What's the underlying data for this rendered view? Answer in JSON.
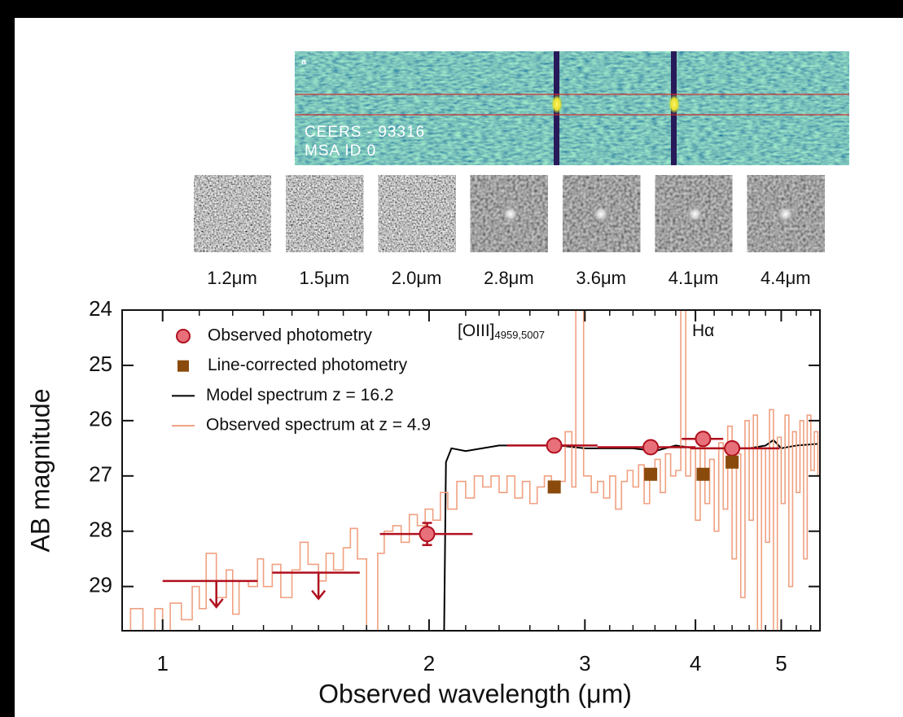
{
  "spectrum_2d": {
    "panel_label": "a",
    "object": "CEERS - 93316",
    "slit": "MSA ID 0"
  },
  "thumbnails": {
    "labels": [
      "1.2μm",
      "1.5μm",
      "2.0μm",
      "2.8μm",
      "3.6μm",
      "4.1μm",
      "4.4μm"
    ]
  },
  "chart_data": {
    "type": "line",
    "xlabel": "Observed wavelength (μm)",
    "ylabel": "AB magnitude",
    "xscale": "log",
    "xlim": [
      0.9,
      5.53
    ],
    "ylim": [
      24,
      29.8
    ],
    "xticks": [
      1,
      2,
      3,
      4,
      5
    ],
    "xminorticks": [
      0.9,
      1.1,
      1.2,
      1.3,
      1.4,
      1.5,
      1.6,
      1.7,
      1.8,
      1.9,
      2.2,
      2.4,
      2.6,
      2.8,
      3.2,
      3.4,
      3.6,
      3.8,
      4.2,
      4.4,
      4.6,
      4.8,
      5.2,
      5.4
    ],
    "yticks": [
      24,
      25,
      26,
      27,
      28,
      29
    ],
    "y_inverted": true,
    "legend": "upper left",
    "annotations": [
      {
        "text": "[OIII]",
        "sub": "4959,5007"
      },
      {
        "text": "Hα"
      }
    ],
    "series": [
      {
        "name": "Observed photometry",
        "type": "scatter",
        "marker": "circle",
        "color": "#e8707a",
        "edge_color": "#b0101e",
        "x": [
          1.15,
          1.5,
          1.99,
          2.77,
          3.56,
          4.08,
          4.4
        ],
        "values": [
          28.9,
          28.75,
          28.05,
          26.45,
          26.48,
          26.33,
          26.5
        ],
        "x_low": [
          1.0,
          1.33,
          1.76,
          2.45,
          3.1,
          3.86,
          3.95
        ],
        "x_high": [
          1.28,
          1.67,
          2.24,
          3.1,
          4.0,
          4.3,
          4.98
        ],
        "yerr": [
          null,
          null,
          0.2,
          null,
          null,
          null,
          null
        ],
        "upper_limit": [
          true,
          true,
          false,
          false,
          false,
          false,
          false
        ]
      },
      {
        "name": "Line-corrected photometry",
        "type": "scatter",
        "marker": "square",
        "color": "#8a4a0c",
        "x": [
          2.77,
          3.56,
          4.08,
          4.4
        ],
        "values": [
          27.2,
          26.97,
          26.97,
          26.75
        ]
      },
      {
        "name": "Model spectrum z = 16.2",
        "type": "line",
        "color": "#000000",
        "x": [
          2.08,
          2.09,
          2.12,
          2.2,
          2.4,
          2.6,
          2.8,
          3.0,
          3.2,
          3.4,
          3.6,
          3.8,
          4.0,
          4.2,
          4.4,
          4.6,
          4.8,
          4.9,
          5.0,
          5.2,
          5.5
        ],
        "values": [
          29.8,
          26.75,
          26.5,
          26.55,
          26.45,
          26.45,
          26.45,
          26.5,
          26.5,
          26.5,
          26.55,
          26.45,
          26.5,
          26.5,
          26.5,
          26.5,
          26.45,
          26.35,
          26.5,
          26.45,
          26.42
        ]
      },
      {
        "name": "Observed spectrum at z = 4.9",
        "type": "step",
        "color": "#f0a080",
        "x": [
          0.9,
          0.92,
          0.95,
          0.98,
          1.0,
          1.02,
          1.05,
          1.08,
          1.1,
          1.12,
          1.15,
          1.18,
          1.2,
          1.22,
          1.25,
          1.28,
          1.3,
          1.33,
          1.36,
          1.4,
          1.43,
          1.46,
          1.5,
          1.53,
          1.56,
          1.6,
          1.63,
          1.66,
          1.7,
          1.72,
          1.75,
          1.78,
          1.82,
          1.86,
          1.9,
          1.94,
          1.98,
          2.02,
          2.06,
          2.1,
          2.15,
          2.2,
          2.25,
          2.3,
          2.35,
          2.4,
          2.45,
          2.5,
          2.55,
          2.6,
          2.65,
          2.7,
          2.75,
          2.8,
          2.85,
          2.9,
          2.93,
          2.96,
          2.99,
          3.05,
          3.1,
          3.15,
          3.2,
          3.25,
          3.3,
          3.35,
          3.4,
          3.45,
          3.5,
          3.55,
          3.6,
          3.65,
          3.7,
          3.75,
          3.8,
          3.85,
          3.9,
          3.95,
          4.0,
          4.05,
          4.1,
          4.15,
          4.2,
          4.25,
          4.3,
          4.35,
          4.4,
          4.45,
          4.5,
          4.55,
          4.6,
          4.65,
          4.7,
          4.75,
          4.8,
          4.85,
          4.9,
          4.95,
          5.0,
          5.05,
          5.1,
          5.15,
          5.2,
          5.25,
          5.3,
          5.35,
          5.4,
          5.45,
          5.5
        ],
        "values": [
          29.8,
          29.4,
          29.8,
          29.4,
          29.8,
          29.3,
          29.6,
          29.0,
          29.4,
          28.4,
          29.2,
          28.7,
          29.5,
          28.9,
          29.0,
          28.5,
          29.0,
          28.6,
          29.2,
          28.7,
          28.2,
          28.6,
          28.9,
          28.4,
          28.7,
          28.3,
          27.95,
          28.5,
          29.8,
          29.8,
          28.4,
          28.0,
          27.9,
          28.2,
          27.7,
          27.9,
          27.6,
          27.8,
          27.3,
          27.6,
          27.1,
          27.4,
          27.0,
          27.2,
          27.0,
          27.3,
          27.0,
          27.4,
          27.1,
          27.5,
          27.2,
          27.0,
          27.3,
          27.1,
          26.2,
          27.2,
          23.0,
          23.0,
          27.0,
          27.3,
          27.1,
          27.4,
          27.0,
          27.6,
          27.1,
          26.9,
          27.2,
          26.8,
          27.5,
          27.0,
          26.7,
          27.3,
          26.6,
          27.0,
          26.9,
          23.0,
          27.0,
          26.5,
          27.8,
          26.3,
          27.5,
          26.7,
          28.0,
          26.4,
          27.6,
          26.1,
          28.5,
          26.6,
          29.2,
          26.0,
          27.8,
          25.9,
          29.8,
          26.5,
          28.2,
          25.8,
          29.8,
          26.3,
          27.5,
          25.9,
          29.0,
          26.2,
          27.3,
          26.0,
          28.5,
          25.9,
          26.9,
          26.2,
          27.0
        ]
      }
    ]
  }
}
